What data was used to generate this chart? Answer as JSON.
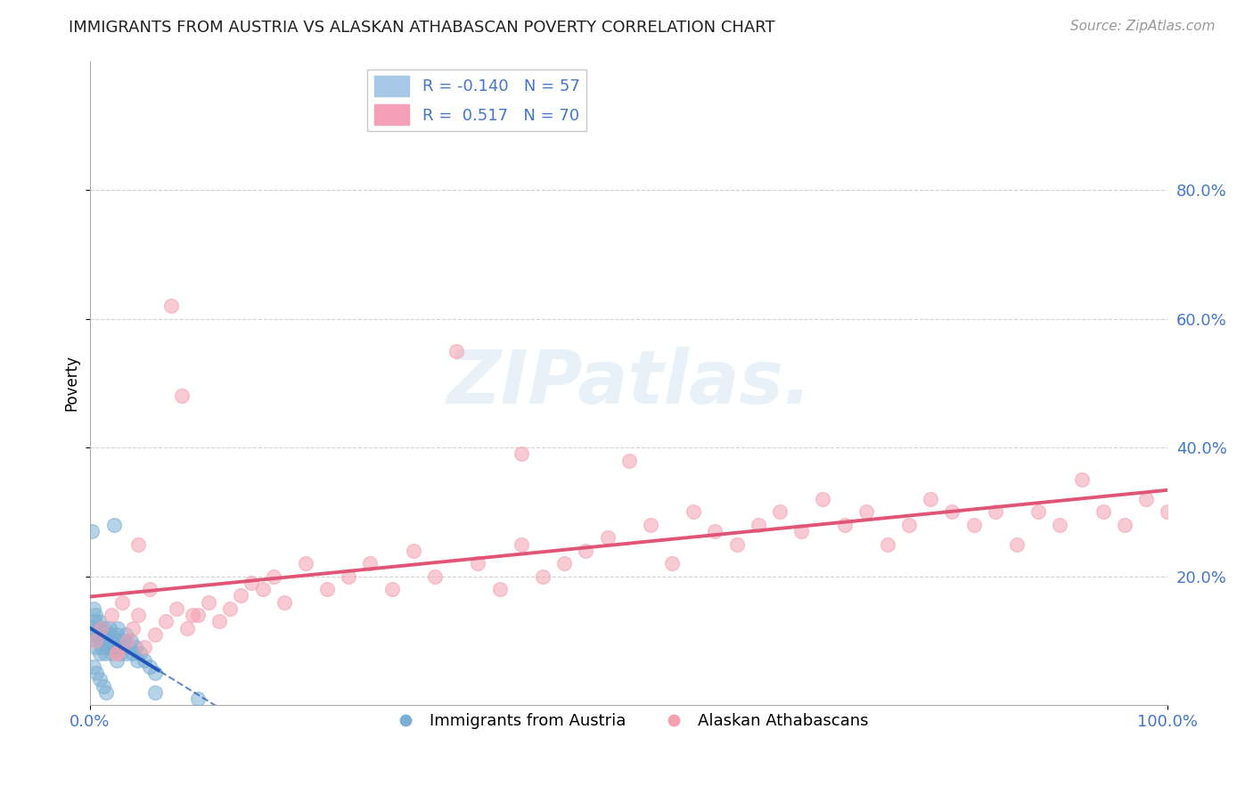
{
  "title": "IMMIGRANTS FROM AUSTRIA VS ALASKAN ATHABASCAN POVERTY CORRELATION CHART",
  "source_text": "Source: ZipAtlas.com",
  "ylabel": "Poverty",
  "watermark": "ZIPatlas.",
  "legend_label1": "Immigrants from Austria",
  "legend_label2": "Alaskan Athabascans",
  "blue_color": "#7bafd4",
  "pink_color": "#f4a0b0",
  "blue_line_color": "#2255bb",
  "pink_line_color": "#e05575",
  "axis_label_color": "#4477cc",
  "title_color": "#222222",
  "grid_color": "#cccccc",
  "background_color": "#ffffff",
  "R_blue": -0.14,
  "N_blue": 57,
  "R_pink": 0.517,
  "N_pink": 70,
  "xlim": [
    0.0,
    1.0
  ],
  "ylim": [
    0.0,
    1.0
  ],
  "blue_scatter_x": [
    0.002,
    0.003,
    0.004,
    0.005,
    0.006,
    0.007,
    0.008,
    0.009,
    0.01,
    0.011,
    0.012,
    0.013,
    0.014,
    0.015,
    0.016,
    0.017,
    0.018,
    0.019,
    0.02,
    0.021,
    0.022,
    0.023,
    0.024,
    0.025,
    0.026,
    0.027,
    0.028,
    0.03,
    0.031,
    0.033,
    0.034,
    0.036,
    0.038,
    0.04,
    0.042,
    0.044,
    0.046,
    0.05,
    0.055,
    0.06,
    0.002,
    0.003,
    0.005,
    0.008,
    0.01,
    0.012,
    0.015,
    0.018,
    0.02,
    0.025,
    0.003,
    0.006,
    0.009,
    0.012,
    0.015,
    0.06,
    0.1
  ],
  "blue_scatter_y": [
    0.12,
    0.11,
    0.13,
    0.09,
    0.1,
    0.11,
    0.12,
    0.08,
    0.1,
    0.09,
    0.11,
    0.12,
    0.08,
    0.1,
    0.11,
    0.09,
    0.12,
    0.1,
    0.11,
    0.09,
    0.28,
    0.1,
    0.09,
    0.11,
    0.12,
    0.1,
    0.08,
    0.09,
    0.1,
    0.11,
    0.08,
    0.09,
    0.1,
    0.08,
    0.09,
    0.07,
    0.08,
    0.07,
    0.06,
    0.05,
    0.27,
    0.15,
    0.14,
    0.13,
    0.12,
    0.11,
    0.1,
    0.09,
    0.08,
    0.07,
    0.06,
    0.05,
    0.04,
    0.03,
    0.02,
    0.02,
    0.01
  ],
  "pink_scatter_x": [
    0.005,
    0.01,
    0.02,
    0.025,
    0.03,
    0.035,
    0.04,
    0.045,
    0.05,
    0.06,
    0.07,
    0.08,
    0.09,
    0.1,
    0.11,
    0.12,
    0.13,
    0.14,
    0.15,
    0.16,
    0.17,
    0.18,
    0.2,
    0.22,
    0.24,
    0.26,
    0.28,
    0.3,
    0.32,
    0.34,
    0.36,
    0.38,
    0.4,
    0.42,
    0.44,
    0.46,
    0.48,
    0.5,
    0.52,
    0.54,
    0.56,
    0.58,
    0.6,
    0.62,
    0.64,
    0.66,
    0.68,
    0.7,
    0.72,
    0.74,
    0.76,
    0.78,
    0.8,
    0.82,
    0.84,
    0.86,
    0.88,
    0.9,
    0.92,
    0.94,
    0.96,
    0.98,
    1.0,
    0.045,
    0.075,
    0.025,
    0.055,
    0.085,
    0.095,
    0.4
  ],
  "pink_scatter_y": [
    0.1,
    0.12,
    0.14,
    0.08,
    0.16,
    0.1,
    0.12,
    0.14,
    0.09,
    0.11,
    0.13,
    0.15,
    0.12,
    0.14,
    0.16,
    0.13,
    0.15,
    0.17,
    0.19,
    0.18,
    0.2,
    0.16,
    0.22,
    0.18,
    0.2,
    0.22,
    0.18,
    0.24,
    0.2,
    0.55,
    0.22,
    0.18,
    0.25,
    0.2,
    0.22,
    0.24,
    0.26,
    0.38,
    0.28,
    0.22,
    0.3,
    0.27,
    0.25,
    0.28,
    0.3,
    0.27,
    0.32,
    0.28,
    0.3,
    0.25,
    0.28,
    0.32,
    0.3,
    0.28,
    0.3,
    0.25,
    0.3,
    0.28,
    0.35,
    0.3,
    0.28,
    0.32,
    0.3,
    0.25,
    0.62,
    0.08,
    0.18,
    0.48,
    0.14,
    0.39
  ]
}
